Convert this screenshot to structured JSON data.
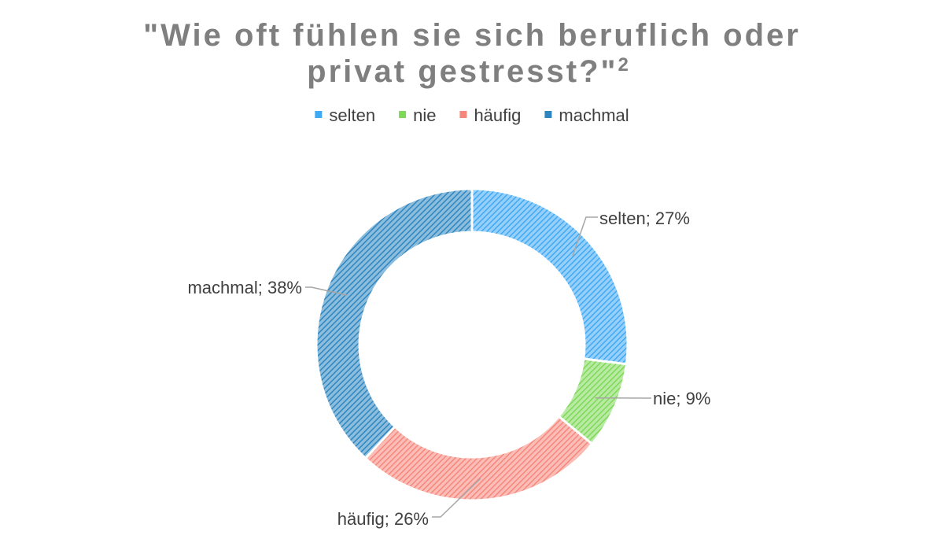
{
  "chart_data": {
    "type": "pie",
    "variant": "doughnut",
    "title_line1": "\"Wie oft fühlen sie sich beruflich oder",
    "title_line2": "privat gestresst?\"",
    "title_superscript": "2",
    "legend_position": "top",
    "label_separator": "; ",
    "value_suffix": "%",
    "slices": [
      {
        "label": "selten",
        "value": 27,
        "color": "#3fa9f5"
      },
      {
        "label": "nie",
        "value": 9,
        "color": "#7ed957"
      },
      {
        "label": "häufig",
        "value": 26,
        "color": "#f8877b"
      },
      {
        "label": "machmal",
        "value": 38,
        "color": "#2e86c1"
      }
    ]
  }
}
